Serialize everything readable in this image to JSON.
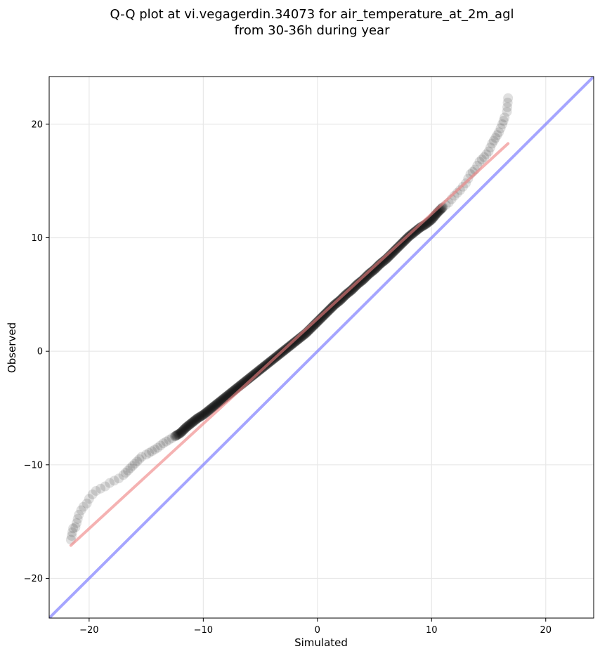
{
  "chart_data": {
    "type": "scatter",
    "title_line1": "Q-Q plot at vi.vegagerdin.34073 for air_temperature_at_2m_agl",
    "title_line2": "from 30-36h during year",
    "xlabel": "Simulated",
    "ylabel": "Observed",
    "xlim": [
      -23.5,
      24.2
    ],
    "ylim": [
      -23.5,
      24.2
    ],
    "xticks": [
      -20,
      -10,
      0,
      10,
      20
    ],
    "yticks": [
      -20,
      -10,
      0,
      10,
      20
    ],
    "xtick_labels": [
      "−20",
      "−10",
      "0",
      "10",
      "20"
    ],
    "ytick_labels": [
      "−20",
      "−10",
      "0",
      "10",
      "20"
    ],
    "grid": true,
    "point_color": "#000000",
    "point_alpha": 0.12,
    "fit_line": {
      "color": "#f08080",
      "x": [
        -21.6,
        16.7
      ],
      "y": [
        -17.1,
        18.3
      ]
    },
    "identity_line": {
      "color": "#8080ff"
    },
    "quantiles": {
      "x": [
        -21.6,
        -21.4,
        -21.2,
        -20.9,
        -20.7,
        -20.5,
        -20.2,
        -20.0,
        -19.7,
        -19.4,
        -19.0,
        -18.6,
        -18.2,
        -17.8,
        -17.4,
        -17.0,
        -16.6,
        -16.2,
        -15.8,
        -15.4,
        -15.0,
        -14.5,
        -14.0,
        -13.5,
        -13.0,
        -12.5,
        -12.0,
        -11.5,
        -11.0,
        -10.5,
        -10.0,
        -9.5,
        -9.0,
        -8.5,
        -8.0,
        -7.5,
        -7.0,
        -6.5,
        -6.0,
        -5.5,
        -5.0,
        -4.5,
        -4.0,
        -3.5,
        -3.0,
        -2.5,
        -2.0,
        -1.5,
        -1.0,
        -0.5,
        0.0,
        0.5,
        1.0,
        1.5,
        2.0,
        2.5,
        3.0,
        3.5,
        4.0,
        4.5,
        5.0,
        5.5,
        6.0,
        6.5,
        7.0,
        7.5,
        8.0,
        8.5,
        9.0,
        9.5,
        10.0,
        10.5,
        11.0,
        11.5,
        12.0,
        12.5,
        13.0,
        13.4,
        13.8,
        14.2,
        14.6,
        15.0,
        15.3,
        15.6,
        15.9,
        16.2,
        16.4,
        16.6,
        16.7
      ],
      "y": [
        -16.6,
        -15.6,
        -15.5,
        -14.4,
        -14.0,
        -13.7,
        -13.4,
        -13.0,
        -12.6,
        -12.3,
        -12.1,
        -11.9,
        -11.6,
        -11.4,
        -11.2,
        -10.9,
        -10.5,
        -10.1,
        -9.7,
        -9.3,
        -9.1,
        -8.8,
        -8.5,
        -8.1,
        -7.8,
        -7.5,
        -7.2,
        -6.7,
        -6.3,
        -5.9,
        -5.6,
        -5.2,
        -4.8,
        -4.4,
        -4.0,
        -3.6,
        -3.2,
        -2.8,
        -2.4,
        -2.0,
        -1.6,
        -1.2,
        -0.8,
        -0.4,
        0.0,
        0.4,
        0.8,
        1.2,
        1.6,
        2.1,
        2.6,
        3.1,
        3.6,
        4.1,
        4.5,
        5.0,
        5.4,
        5.9,
        6.3,
        6.8,
        7.2,
        7.7,
        8.1,
        8.6,
        9.1,
        9.6,
        10.1,
        10.5,
        10.9,
        11.2,
        11.6,
        12.2,
        12.7,
        13.1,
        13.7,
        14.2,
        14.8,
        15.6,
        16.0,
        16.7,
        17.1,
        17.6,
        18.3,
        18.8,
        19.3,
        20.0,
        20.6,
        21.1,
        22.3
      ]
    }
  }
}
